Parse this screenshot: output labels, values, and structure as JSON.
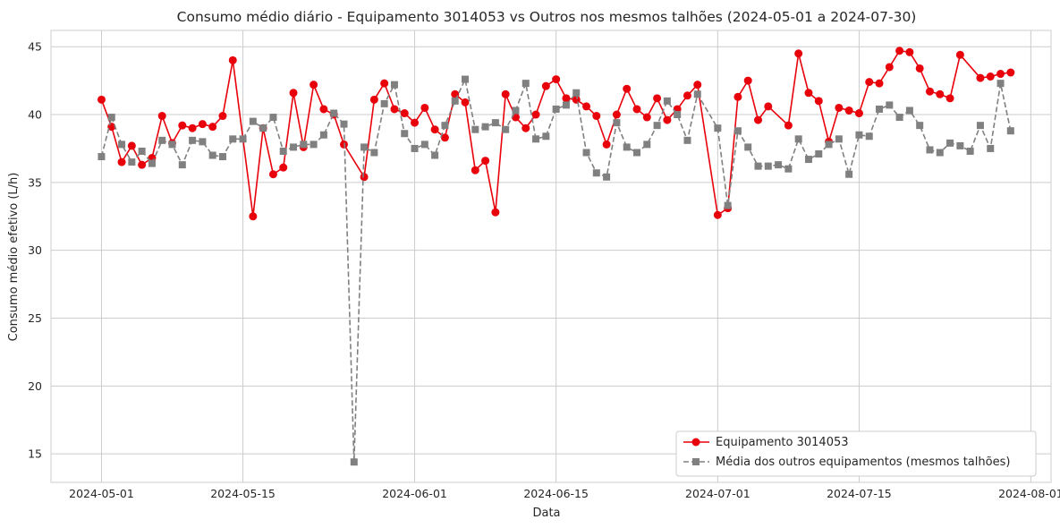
{
  "chart_data": {
    "type": "line",
    "title": "Consumo médio diário - Equipamento 3014053 vs Outros nos mesmos talhões (2024-05-01 a 2024-07-30)",
    "xlabel": "Data",
    "ylabel": "Consumo médio efetivo (L/h)",
    "x_start": "2024-05-01",
    "x_end": "2024-07-30",
    "xlim": [
      "2024-04-26",
      "2024-08-03"
    ],
    "ylim": [
      12.9,
      46.2
    ],
    "x_ticks": [
      "2024-05-01",
      "2024-05-15",
      "2024-06-01",
      "2024-06-15",
      "2024-07-01",
      "2024-07-15",
      "2024-08-01"
    ],
    "y_ticks": [
      15,
      20,
      25,
      30,
      35,
      40,
      45
    ],
    "grid": true,
    "legend_position": "lower-right",
    "series": [
      {
        "name": "Equipamento 3014053",
        "color": "#e8000b",
        "marker": "circle",
        "linestyle": "solid",
        "values": [
          41.1,
          39.1,
          36.5,
          37.7,
          36.3,
          36.8,
          39.9,
          37.9,
          39.2,
          39.0,
          39.3,
          39.1,
          39.9,
          44.0,
          null,
          32.5,
          39.0,
          35.6,
          36.1,
          41.6,
          37.6,
          42.2,
          40.4,
          40.0,
          37.8,
          null,
          35.4,
          41.1,
          42.3,
          40.4,
          40.1,
          39.4,
          40.5,
          38.9,
          38.3,
          41.5,
          40.9,
          35.9,
          36.6,
          32.8,
          41.5,
          39.8,
          39.0,
          40.0,
          42.1,
          42.6,
          41.2,
          41.1,
          40.6,
          39.9,
          37.8,
          40.0,
          41.9,
          40.4,
          39.8,
          41.2,
          39.6,
          40.4,
          41.4,
          42.2,
          null,
          32.6,
          33.1,
          41.3,
          42.5,
          39.6,
          40.6,
          null,
          39.2,
          44.5,
          41.6,
          41.0,
          38.0,
          40.5,
          40.3,
          40.1,
          42.4,
          42.3,
          43.5,
          44.7,
          44.6,
          43.4,
          41.7,
          41.5,
          41.2,
          44.4,
          null,
          42.7,
          42.8,
          43.0,
          43.1
        ],
        "legend_label": "Equipamento 3014053"
      },
      {
        "name": "Média dos outros equipamentos (mesmos talhões)",
        "color": "#808080",
        "marker": "square",
        "linestyle": "dashed",
        "values": [
          36.9,
          39.8,
          37.8,
          36.5,
          37.3,
          36.4,
          38.1,
          37.8,
          36.3,
          38.1,
          38.0,
          37.0,
          36.9,
          38.2,
          38.2,
          39.5,
          39.0,
          39.8,
          37.3,
          37.6,
          37.8,
          37.8,
          38.5,
          40.1,
          39.3,
          14.4,
          37.6,
          37.2,
          40.8,
          42.2,
          38.6,
          37.5,
          37.8,
          37.0,
          39.2,
          41.0,
          42.6,
          38.9,
          39.1,
          39.4,
          38.9,
          40.3,
          42.3,
          38.2,
          38.4,
          40.4,
          40.7,
          41.6,
          37.2,
          35.7,
          35.4,
          39.4,
          37.6,
          37.2,
          37.8,
          39.2,
          41.0,
          40.0,
          38.1,
          41.5,
          null,
          39.0,
          33.3,
          38.8,
          37.6,
          36.2,
          36.2,
          36.3,
          36.0,
          38.2,
          36.7,
          37.1,
          37.8,
          38.2,
          35.6,
          38.5,
          38.4,
          40.4,
          40.7,
          39.8,
          40.3,
          39.2,
          37.4,
          37.2,
          37.9,
          37.7,
          37.3,
          39.2,
          37.5,
          42.3,
          38.8
        ],
        "legend_label": "Média dos outros equipamentos (mesmos talhões)"
      }
    ]
  }
}
